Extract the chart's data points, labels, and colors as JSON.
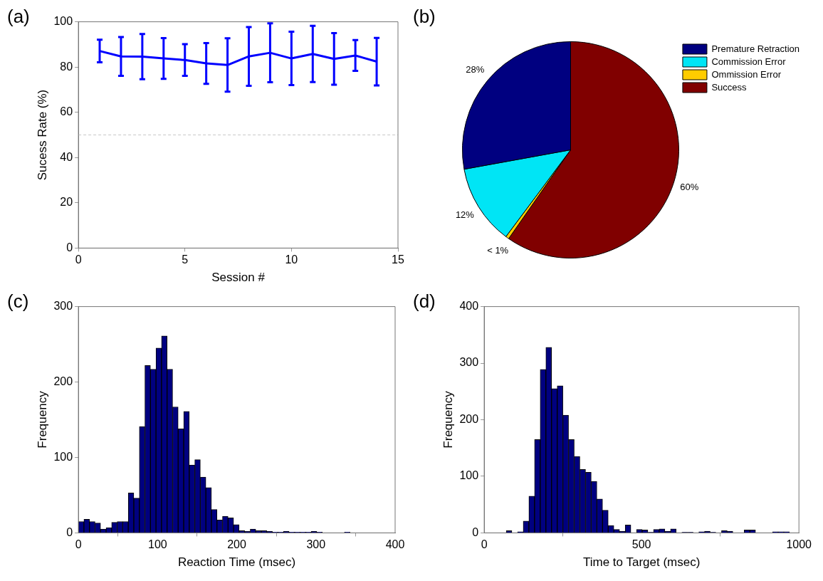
{
  "chart_data": [
    {
      "type": "line",
      "title": "(a)",
      "xlabel": "Session #",
      "ylabel": "Sucess Rate (%)",
      "x": [
        1,
        2,
        3,
        4,
        5,
        6,
        7,
        8,
        9,
        10,
        11,
        12,
        13,
        14
      ],
      "values": [
        87.1,
        84.7,
        84.6,
        83.8,
        83.1,
        81.6,
        80.9,
        84.7,
        86.3,
        83.8,
        85.8,
        83.6,
        85.1,
        82.4
      ],
      "color": "#0000ff",
      "errors": [
        5,
        8.6,
        10,
        9,
        7,
        9,
        11.8,
        13,
        13,
        11.8,
        12.4,
        11.4,
        6.8,
        10.5
      ],
      "marker": "none",
      "line_style": "solid",
      "xlim": [
        0,
        15
      ],
      "xticks": [
        0,
        5,
        10,
        15
      ],
      "ylim": [
        0,
        100
      ],
      "yticks": [
        0,
        20,
        40,
        60,
        80,
        100
      ],
      "ref_lines": [
        {
          "axis": "y",
          "value": 50,
          "color": "#c8c8c8",
          "line_style": "dashed"
        }
      ]
    },
    {
      "type": "pie",
      "title": "(b)",
      "categories": [
        "Premature Retraction",
        "Commission Error",
        "Ommission Error",
        "Success"
      ],
      "values": [
        28,
        12,
        0.5,
        60
      ],
      "value_labels": [
        "28%",
        "12%",
        "< 1%",
        "60%"
      ],
      "colors": [
        "#000080",
        "#00e5f5",
        "#ffcc00",
        "#800000"
      ],
      "legend": "top right"
    },
    {
      "type": "histogram",
      "title": "(c)",
      "xlabel": "Reaction Time (msec)",
      "ylabel": "Frequency",
      "color": "#000080",
      "bins": [
        0,
        7,
        14,
        21,
        28,
        35,
        42,
        49,
        56,
        63,
        70,
        77,
        84,
        91,
        98,
        105,
        112,
        119,
        126,
        133,
        140,
        147,
        154,
        161,
        168,
        175,
        182,
        189,
        196,
        203,
        210,
        217,
        224,
        231,
        238,
        245,
        252,
        259,
        266,
        273,
        280,
        287,
        294,
        301,
        308,
        315,
        322,
        329,
        336,
        343,
        350
      ],
      "values": [
        15,
        18,
        15,
        13,
        5,
        7,
        14,
        15,
        15,
        53,
        46,
        141,
        222,
        217,
        245,
        261,
        217,
        167,
        138,
        161,
        90,
        97,
        74,
        60,
        31,
        17,
        22,
        20,
        11,
        3,
        2,
        5,
        3,
        3,
        2,
        1,
        1,
        2,
        1,
        1,
        1,
        1,
        2,
        1,
        0,
        0,
        0,
        0,
        1,
        0
      ],
      "xlim": [
        0,
        400
      ],
      "xticks": [
        0,
        100,
        200,
        300,
        400
      ],
      "ylim": [
        0,
        300
      ],
      "yticks": [
        0,
        100,
        200,
        300
      ]
    },
    {
      "type": "histogram",
      "title": "(d)",
      "xlabel": "Time to Target (msec)",
      "ylabel": "Frequency",
      "color": "#000080",
      "bins": [
        70,
        88,
        106,
        124,
        142,
        160,
        178,
        196,
        214,
        232,
        250,
        268,
        286,
        304,
        322,
        340,
        358,
        376,
        394,
        412,
        430,
        448,
        466,
        484,
        502,
        520,
        538,
        556,
        574,
        592,
        610,
        628,
        646,
        664,
        682,
        700,
        718,
        736,
        754,
        772,
        790,
        808,
        826,
        844,
        862,
        880,
        898,
        916,
        934,
        952,
        970
      ],
      "values": [
        4,
        0,
        2,
        21,
        65,
        165,
        289,
        328,
        255,
        260,
        208,
        165,
        135,
        112,
        107,
        91,
        60,
        40,
        13,
        6,
        3,
        14,
        0,
        6,
        5,
        1,
        6,
        7,
        3,
        7,
        0,
        1,
        1,
        0,
        2,
        3,
        1,
        0,
        4,
        3,
        0,
        0,
        5,
        5,
        0,
        0,
        0,
        2,
        2,
        2
      ],
      "xlim": [
        0,
        1000
      ],
      "xticks": [
        0,
        500,
        1000
      ],
      "ylim": [
        0,
        400
      ],
      "yticks": [
        0,
        100,
        200,
        300,
        400
      ]
    }
  ]
}
